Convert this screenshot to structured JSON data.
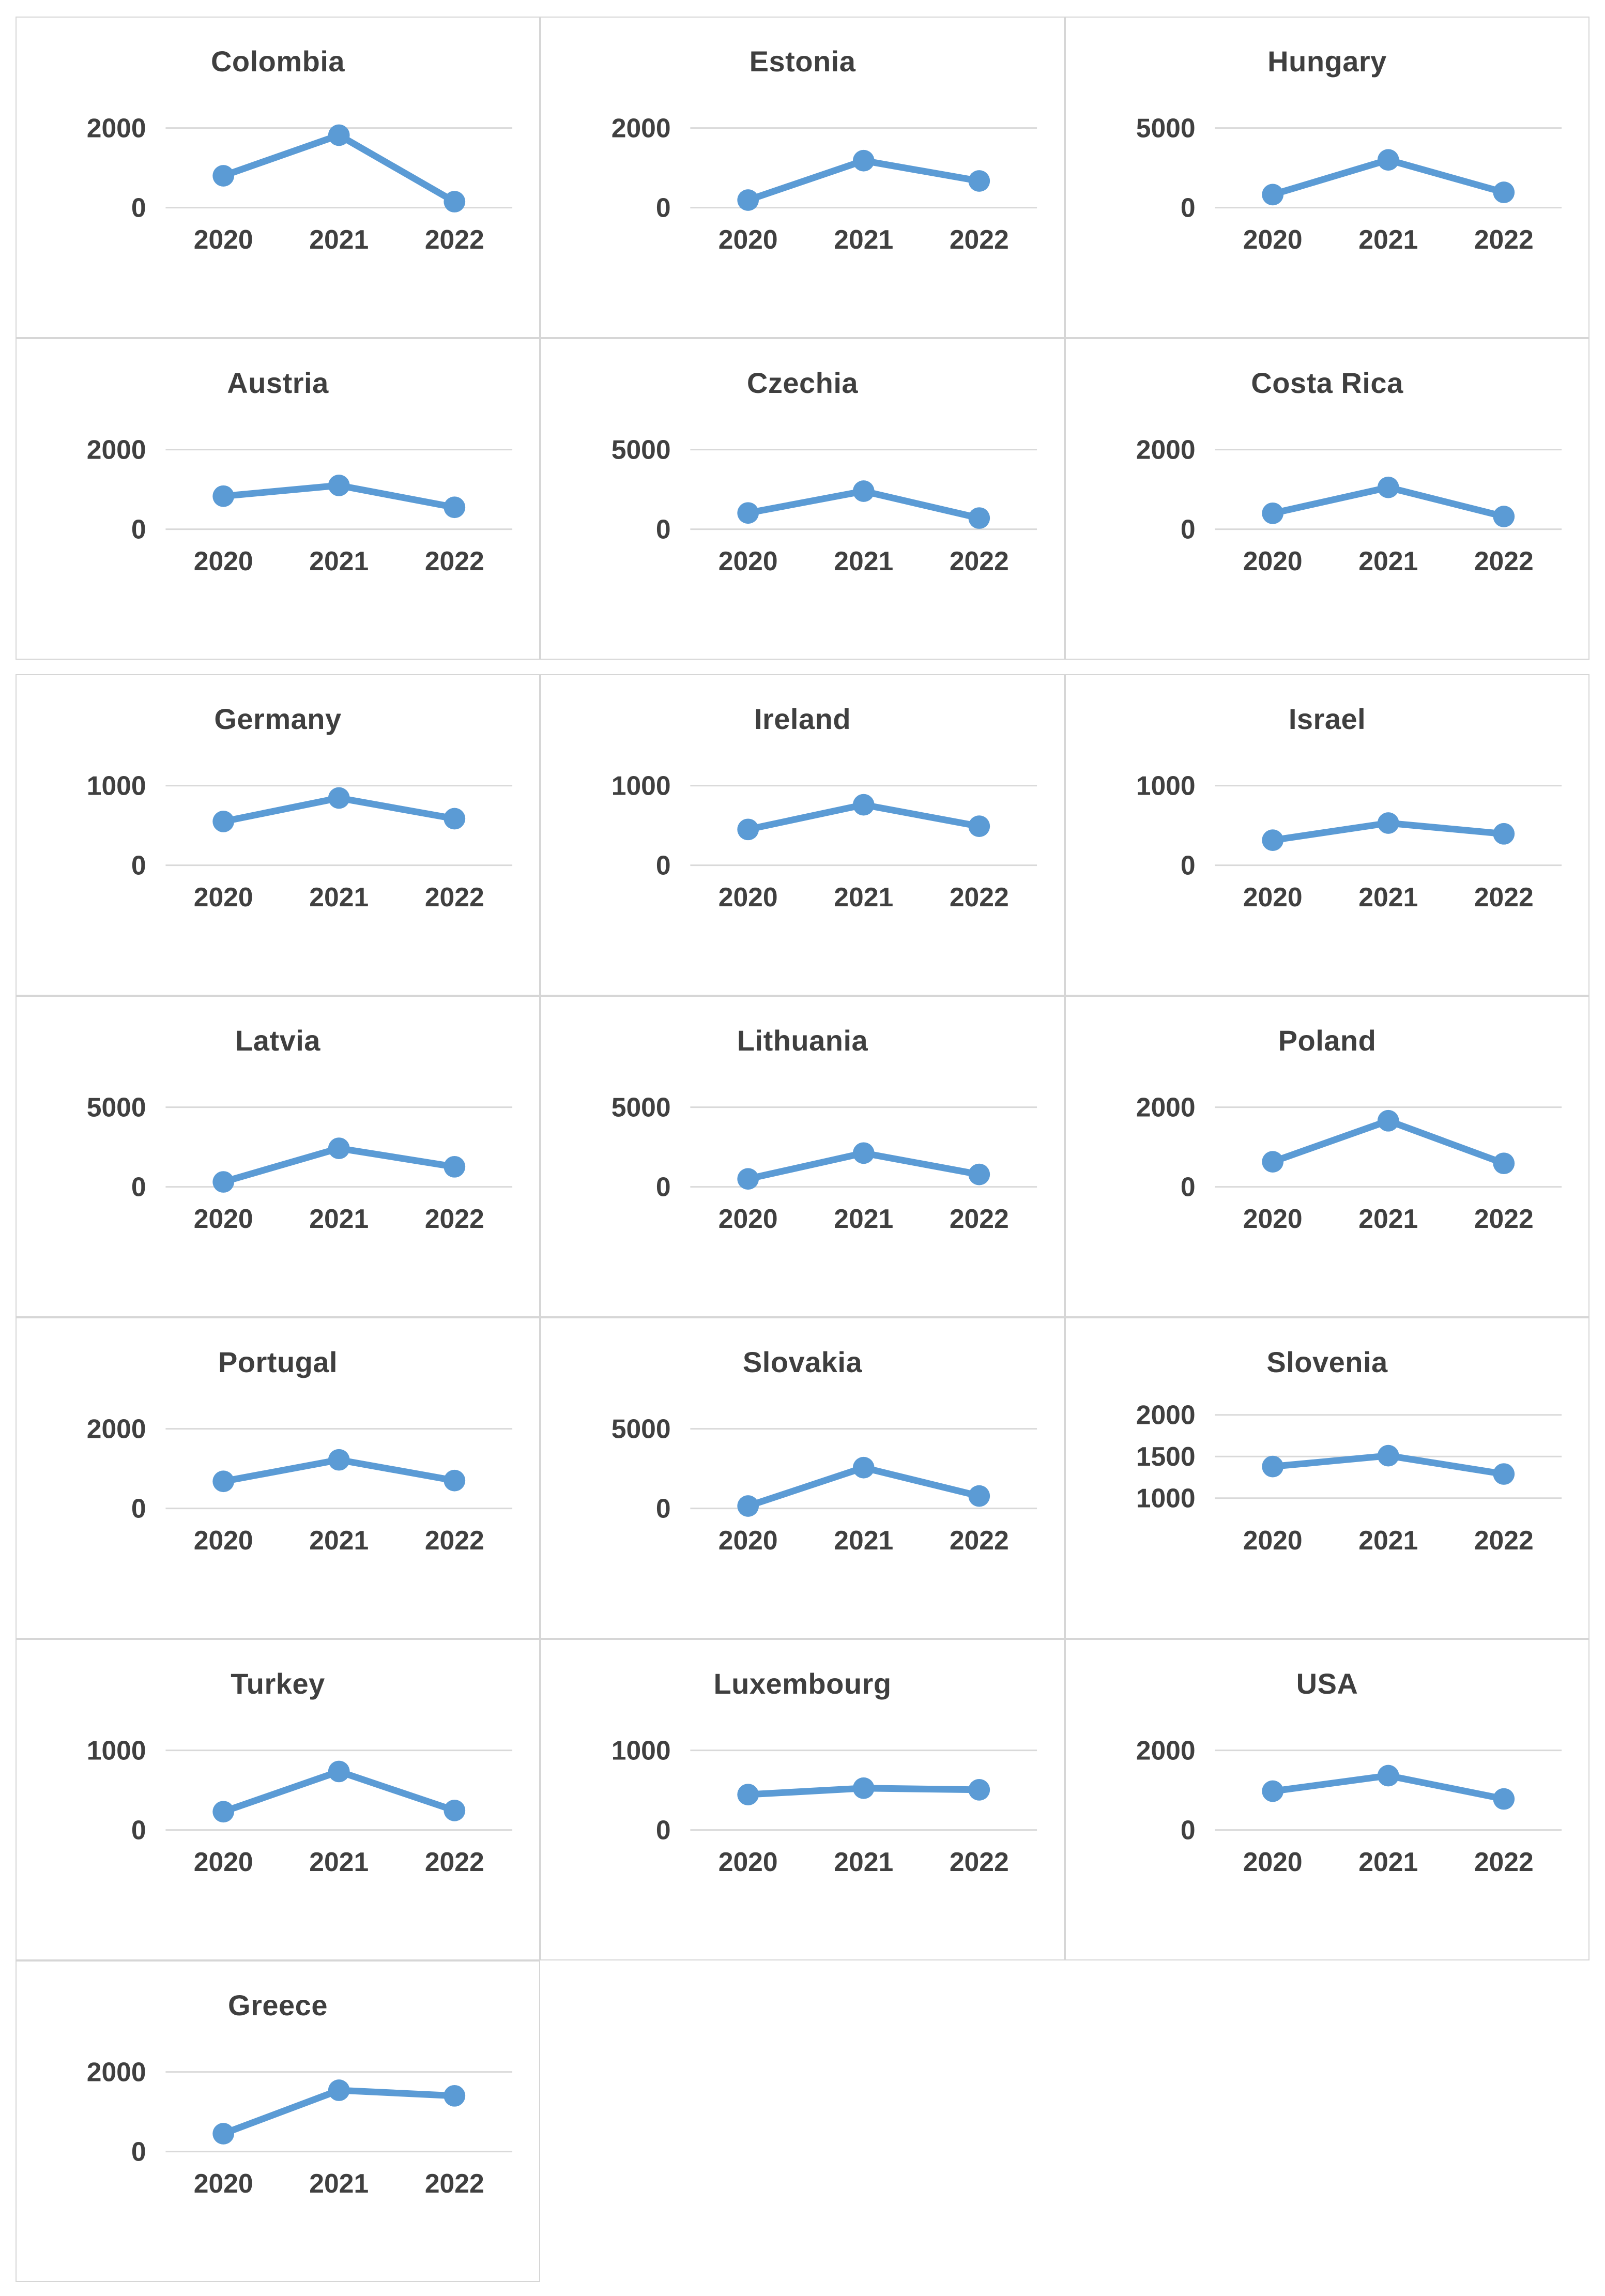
{
  "page": {
    "background": "#ffffff",
    "description": "Grid of per-country line charts, values for years 2020-2022"
  },
  "style": {
    "accent": "#5B9BD5",
    "gridline_color": "#d9d9d9",
    "cell_border_color": "#d6d6d6",
    "title_color": "#3f3f3f",
    "axis_label_color": "#404040"
  },
  "x_categories": [
    "2020",
    "2021",
    "2022"
  ],
  "chart_data": [
    {
      "type": "line",
      "title": "Colombia",
      "block": 1,
      "x": [
        "2020",
        "2021",
        "2022"
      ],
      "values": [
        800,
        1820,
        150
      ],
      "yticks": [
        {
          "value": 2000,
          "label": "2000"
        },
        {
          "value": 0,
          "label": "0"
        }
      ],
      "ylim": [
        0,
        2000
      ],
      "grid": true,
      "legend": "none"
    },
    {
      "type": "line",
      "title": "Estonia",
      "block": 1,
      "x": [
        "2020",
        "2021",
        "2022"
      ],
      "values": [
        190,
        1180,
        670
      ],
      "yticks": [
        {
          "value": 2000,
          "label": "2000"
        },
        {
          "value": 0,
          "label": "0"
        }
      ],
      "ylim": [
        0,
        2000
      ],
      "grid": true,
      "legend": "none"
    },
    {
      "type": "line",
      "title": "Hungary",
      "block": 1,
      "x": [
        "2020",
        "2021",
        "2022"
      ],
      "values": [
        820,
        3000,
        960
      ],
      "yticks": [
        {
          "value": 5000,
          "label": "5000"
        },
        {
          "value": 0,
          "label": "0"
        }
      ],
      "ylim": [
        0,
        5000
      ],
      "grid": true,
      "legend": "none"
    },
    {
      "type": "line",
      "title": "Austria",
      "block": 1,
      "x": [
        "2020",
        "2021",
        "2022"
      ],
      "values": [
        830,
        1100,
        550
      ],
      "yticks": [
        {
          "value": 2000,
          "label": "2000"
        },
        {
          "value": 0,
          "label": "0"
        }
      ],
      "ylim": [
        0,
        2000
      ],
      "grid": true,
      "legend": "none"
    },
    {
      "type": "line",
      "title": "Czechia",
      "block": 1,
      "x": [
        "2020",
        "2021",
        "2022"
      ],
      "values": [
        1020,
        2390,
        700
      ],
      "yticks": [
        {
          "value": 5000,
          "label": "5000"
        },
        {
          "value": 0,
          "label": "0"
        }
      ],
      "ylim": [
        0,
        5000
      ],
      "grid": true,
      "legend": "none"
    },
    {
      "type": "line",
      "title": "Costa Rica",
      "block": 1,
      "x": [
        "2020",
        "2021",
        "2022"
      ],
      "values": [
        400,
        1050,
        320
      ],
      "yticks": [
        {
          "value": 2000,
          "label": "2000"
        },
        {
          "value": 0,
          "label": "0"
        }
      ],
      "ylim": [
        0,
        2000
      ],
      "grid": true,
      "legend": "none"
    },
    {
      "type": "line",
      "title": "Germany",
      "block": 2,
      "x": [
        "2020",
        "2021",
        "2022"
      ],
      "values": [
        550,
        845,
        585
      ],
      "yticks": [
        {
          "value": 1000,
          "label": "1000"
        },
        {
          "value": 0,
          "label": "0"
        }
      ],
      "ylim": [
        0,
        1000
      ],
      "grid": true,
      "legend": "none"
    },
    {
      "type": "line",
      "title": "Ireland",
      "block": 2,
      "x": [
        "2020",
        "2021",
        "2022"
      ],
      "values": [
        450,
        760,
        490
      ],
      "yticks": [
        {
          "value": 1000,
          "label": "1000"
        },
        {
          "value": 0,
          "label": "0"
        }
      ],
      "ylim": [
        0,
        1000
      ],
      "grid": true,
      "legend": "none"
    },
    {
      "type": "line",
      "title": "Israel",
      "block": 2,
      "x": [
        "2020",
        "2021",
        "2022"
      ],
      "values": [
        315,
        530,
        395
      ],
      "yticks": [
        {
          "value": 1000,
          "label": "1000"
        },
        {
          "value": 0,
          "label": "0"
        }
      ],
      "ylim": [
        0,
        1000
      ],
      "grid": true,
      "legend": "none"
    },
    {
      "type": "line",
      "title": "Latvia",
      "block": 2,
      "x": [
        "2020",
        "2021",
        "2022"
      ],
      "values": [
        310,
        2420,
        1260
      ],
      "yticks": [
        {
          "value": 5000,
          "label": "5000"
        },
        {
          "value": 0,
          "label": "0"
        }
      ],
      "ylim": [
        0,
        5000
      ],
      "grid": true,
      "legend": "none"
    },
    {
      "type": "line",
      "title": "Lithuania",
      "block": 2,
      "x": [
        "2020",
        "2021",
        "2022"
      ],
      "values": [
        500,
        2120,
        780
      ],
      "yticks": [
        {
          "value": 5000,
          "label": "5000"
        },
        {
          "value": 0,
          "label": "0"
        }
      ],
      "ylim": [
        0,
        5000
      ],
      "grid": true,
      "legend": "none"
    },
    {
      "type": "line",
      "title": "Poland",
      "block": 2,
      "x": [
        "2020",
        "2021",
        "2022"
      ],
      "values": [
        630,
        1660,
        590
      ],
      "yticks": [
        {
          "value": 2000,
          "label": "2000"
        },
        {
          "value": 0,
          "label": "0"
        }
      ],
      "ylim": [
        0,
        2000
      ],
      "grid": true,
      "legend": "none"
    },
    {
      "type": "line",
      "title": "Portugal",
      "block": 2,
      "x": [
        "2020",
        "2021",
        "2022"
      ],
      "values": [
        680,
        1220,
        700
      ],
      "yticks": [
        {
          "value": 2000,
          "label": "2000"
        },
        {
          "value": 0,
          "label": "0"
        }
      ],
      "ylim": [
        0,
        2000
      ],
      "grid": true,
      "legend": "none"
    },
    {
      "type": "line",
      "title": "Slovakia",
      "block": 2,
      "x": [
        "2020",
        "2021",
        "2022"
      ],
      "values": [
        150,
        2560,
        780
      ],
      "yticks": [
        {
          "value": 5000,
          "label": "5000"
        },
        {
          "value": 0,
          "label": "0"
        }
      ],
      "ylim": [
        0,
        5000
      ],
      "grid": true,
      "legend": "none"
    },
    {
      "type": "line",
      "title": "Slovenia",
      "block": 2,
      "x": [
        "2020",
        "2021",
        "2022"
      ],
      "values": [
        1380,
        1510,
        1290
      ],
      "yticks": [
        {
          "value": 2000,
          "label": "2000"
        },
        {
          "value": 1500,
          "label": "1500"
        },
        {
          "value": 1000,
          "label": "1000"
        }
      ],
      "ylim": [
        1000,
        2000
      ],
      "grid": true,
      "legend": "none"
    },
    {
      "type": "line",
      "title": "Turkey",
      "block": 2,
      "x": [
        "2020",
        "2021",
        "2022"
      ],
      "values": [
        230,
        735,
        245
      ],
      "yticks": [
        {
          "value": 1000,
          "label": "1000"
        },
        {
          "value": 0,
          "label": "0"
        }
      ],
      "ylim": [
        0,
        1000
      ],
      "grid": true,
      "legend": "none"
    },
    {
      "type": "line",
      "title": "Luxembourg",
      "block": 2,
      "x": [
        "2020",
        "2021",
        "2022"
      ],
      "values": [
        445,
        525,
        505
      ],
      "yticks": [
        {
          "value": 1000,
          "label": "1000"
        },
        {
          "value": 0,
          "label": "0"
        }
      ],
      "ylim": [
        0,
        1000
      ],
      "grid": true,
      "legend": "none"
    },
    {
      "type": "line",
      "title": "USA",
      "block": 2,
      "x": [
        "2020",
        "2021",
        "2022"
      ],
      "values": [
        975,
        1365,
        780
      ],
      "yticks": [
        {
          "value": 2000,
          "label": "2000"
        },
        {
          "value": 0,
          "label": "0"
        }
      ],
      "ylim": [
        0,
        2000
      ],
      "grid": true,
      "legend": "none"
    },
    {
      "type": "line",
      "title": "Greece",
      "block": 2,
      "x": [
        "2020",
        "2021",
        "2022"
      ],
      "values": [
        450,
        1540,
        1400
      ],
      "yticks": [
        {
          "value": 2000,
          "label": "2000"
        },
        {
          "value": 0,
          "label": "0"
        }
      ],
      "ylim": [
        0,
        2000
      ],
      "grid": true,
      "legend": "none"
    }
  ]
}
